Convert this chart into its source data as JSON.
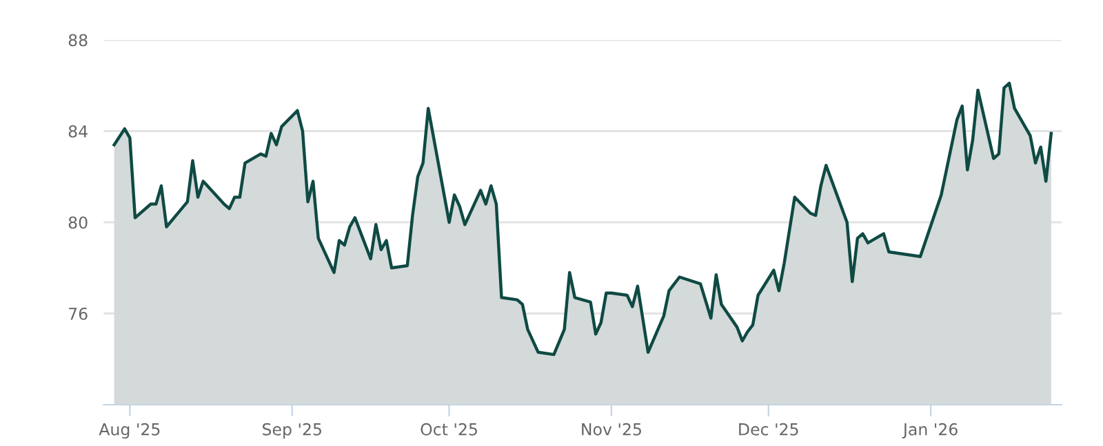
{
  "chart_data": {
    "type": "area",
    "x": [
      "2025-07-29",
      "2025-07-31",
      "2025-08-01",
      "2025-08-02",
      "2025-08-05",
      "2025-08-06",
      "2025-08-07",
      "2025-08-08",
      "2025-08-12",
      "2025-08-13",
      "2025-08-14",
      "2025-08-15",
      "2025-08-19",
      "2025-08-20",
      "2025-08-21",
      "2025-08-22",
      "2025-08-23",
      "2025-08-26",
      "2025-08-27",
      "2025-08-28",
      "2025-08-29",
      "2025-08-30",
      "2025-09-02",
      "2025-09-03",
      "2025-09-04",
      "2025-09-05",
      "2025-09-06",
      "2025-09-09",
      "2025-09-10",
      "2025-09-11",
      "2025-09-12",
      "2025-09-13",
      "2025-09-16",
      "2025-09-17",
      "2025-09-18",
      "2025-09-19",
      "2025-09-20",
      "2025-09-23",
      "2025-09-24",
      "2025-09-25",
      "2025-09-26",
      "2025-09-27",
      "2025-10-01",
      "2025-10-02",
      "2025-10-03",
      "2025-10-04",
      "2025-10-07",
      "2025-10-08",
      "2025-10-09",
      "2025-10-10",
      "2025-10-11",
      "2025-10-14",
      "2025-10-15",
      "2025-10-16",
      "2025-10-18",
      "2025-10-21",
      "2025-10-23",
      "2025-10-24",
      "2025-10-25",
      "2025-10-28",
      "2025-10-29",
      "2025-10-30",
      "2025-10-31",
      "2025-11-01",
      "2025-11-04",
      "2025-11-05",
      "2025-11-06",
      "2025-11-08",
      "2025-11-11",
      "2025-11-12",
      "2025-11-14",
      "2025-11-18",
      "2025-11-20",
      "2025-11-21",
      "2025-11-22",
      "2025-11-25",
      "2025-11-26",
      "2025-11-27",
      "2025-11-28",
      "2025-11-29",
      "2025-12-02",
      "2025-12-03",
      "2025-12-04",
      "2025-12-06",
      "2025-12-09",
      "2025-12-10",
      "2025-12-11",
      "2025-12-12",
      "2025-12-16",
      "2025-12-17",
      "2025-12-18",
      "2025-12-19",
      "2025-12-20",
      "2025-12-23",
      "2025-12-24",
      "2025-12-30",
      "2026-01-03",
      "2026-01-06",
      "2026-01-07",
      "2026-01-08",
      "2026-01-09",
      "2026-01-10",
      "2026-01-13",
      "2026-01-14",
      "2026-01-15",
      "2026-01-16",
      "2026-01-17",
      "2026-01-20",
      "2026-01-21",
      "2026-01-22",
      "2026-01-23",
      "2026-01-24"
    ],
    "series": [
      {
        "color": "#0f4a44",
        "values": [
          83.4,
          84.1,
          83.7,
          80.2,
          80.8,
          80.8,
          81.6,
          79.8,
          80.9,
          82.7,
          81.1,
          81.8,
          80.8,
          80.6,
          81.1,
          81.1,
          82.6,
          83.0,
          82.9,
          83.9,
          83.4,
          84.2,
          84.9,
          84.0,
          80.9,
          81.8,
          79.3,
          77.8,
          79.2,
          79.0,
          79.8,
          80.2,
          78.4,
          79.9,
          78.8,
          79.2,
          78.0,
          78.1,
          80.3,
          82.0,
          82.6,
          85.0,
          80.0,
          81.2,
          80.7,
          79.9,
          81.4,
          80.8,
          81.6,
          80.8,
          76.7,
          76.6,
          76.4,
          75.3,
          74.3,
          74.2,
          75.3,
          77.8,
          76.7,
          76.5,
          75.1,
          75.6,
          76.9,
          76.9,
          76.8,
          76.3,
          77.2,
          74.3,
          75.9,
          77.0,
          77.6,
          77.3,
          75.8,
          77.7,
          76.4,
          75.4,
          74.8,
          75.2,
          75.5,
          76.8,
          77.9,
          77.0,
          78.2,
          81.1,
          80.4,
          80.3,
          81.6,
          82.5,
          80.0,
          77.4,
          79.3,
          79.5,
          79.1,
          79.5,
          78.7,
          78.5,
          81.2,
          84.5,
          85.1,
          82.3,
          83.6,
          85.8,
          82.8,
          83.0,
          85.9,
          86.1,
          85.0,
          83.8,
          82.6,
          83.3,
          81.8,
          83.9
        ]
      }
    ],
    "xlim": [
      "2025-07-27",
      "2026-01-26"
    ],
    "xticks": [
      {
        "value": "2025-08-01",
        "label": "Aug '25"
      },
      {
        "value": "2025-09-01",
        "label": "Sep '25"
      },
      {
        "value": "2025-10-01",
        "label": "Oct '25"
      },
      {
        "value": "2025-11-01",
        "label": "Nov '25"
      },
      {
        "value": "2025-12-01",
        "label": "Dec '25"
      },
      {
        "value": "2026-01-01",
        "label": "Jan '26"
      }
    ],
    "ylim": [
      72,
      88
    ],
    "yticks": [
      76,
      80,
      84,
      88
    ],
    "grid": "y",
    "line_style": "solid",
    "marker": "none"
  }
}
